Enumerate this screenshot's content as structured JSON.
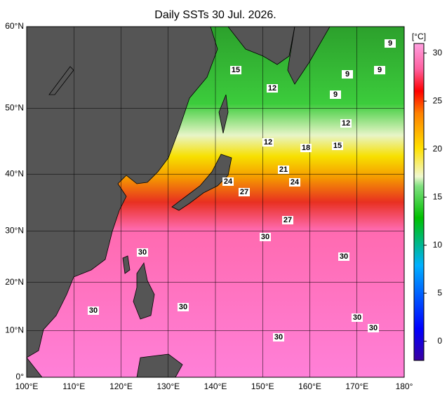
{
  "title": "Daily SSTs 30 Jul. 2026.",
  "lon_axis": {
    "lim": [
      100,
      180
    ],
    "ticks": [
      {
        "value": 100,
        "label": "100°E"
      },
      {
        "value": 110,
        "label": "110°E"
      },
      {
        "value": 120,
        "label": "120°E"
      },
      {
        "value": 130,
        "label": "130°E"
      },
      {
        "value": 140,
        "label": "140°E"
      },
      {
        "value": 150,
        "label": "150°E"
      },
      {
        "value": 160,
        "label": "160°E"
      },
      {
        "value": 170,
        "label": "170°E"
      },
      {
        "value": 180,
        "label": "180°"
      }
    ]
  },
  "lat_axis": {
    "lim": [
      0,
      60
    ],
    "projection": "mercator",
    "ticks": [
      {
        "value": 0,
        "label": "0°"
      },
      {
        "value": 10,
        "label": "10°N"
      },
      {
        "value": 20,
        "label": "20°N"
      },
      {
        "value": 30,
        "label": "30°N"
      },
      {
        "value": 40,
        "label": "40°N"
      },
      {
        "value": 50,
        "label": "50°N"
      },
      {
        "value": 60,
        "label": "60°N"
      }
    ]
  },
  "colorbar": {
    "unit": "[°C]",
    "lim": [
      -2,
      31
    ],
    "ticks": [
      0,
      5,
      10,
      15,
      20,
      25,
      30
    ]
  },
  "contour_labels": [
    15,
    12,
    9,
    9,
    9,
    9,
    12,
    12,
    18,
    15,
    21,
    24,
    24,
    27,
    27,
    30,
    30,
    30,
    30,
    30,
    30,
    30,
    30
  ]
}
